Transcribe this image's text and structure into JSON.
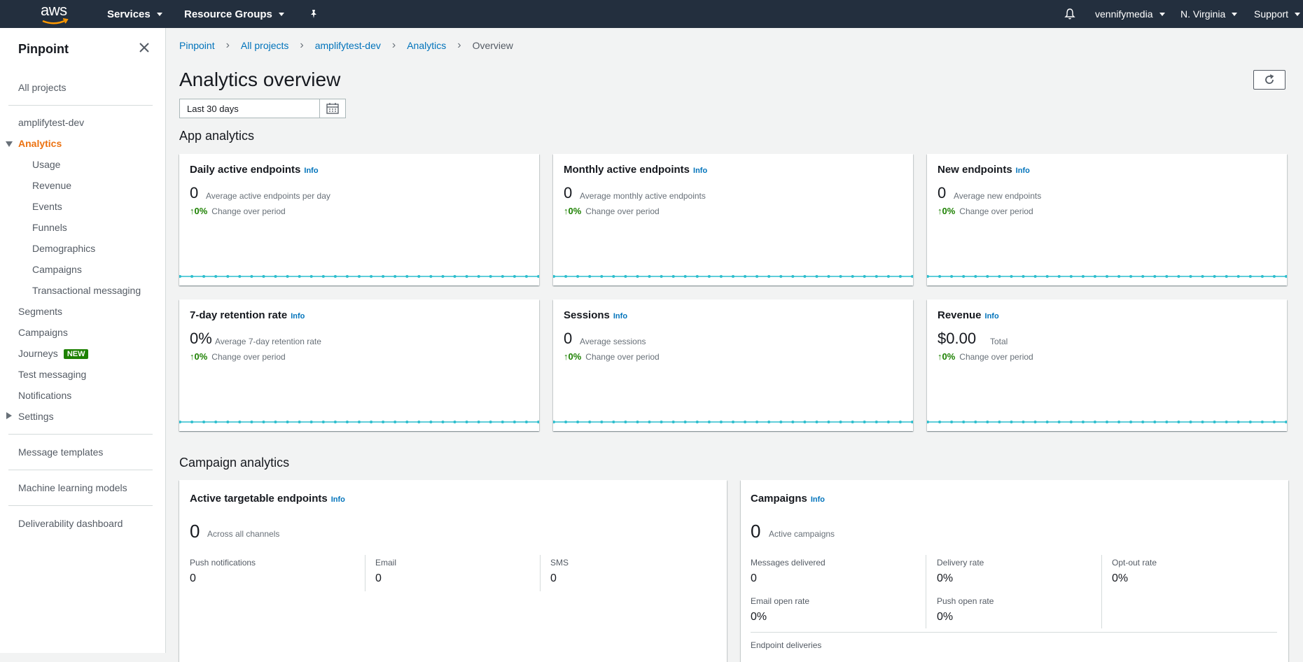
{
  "topbar": {
    "logo_text": "aws",
    "services": "Services",
    "resource_groups": "Resource Groups",
    "account": "vennifymedia",
    "region": "N. Virginia",
    "support": "Support"
  },
  "sidebar": {
    "title": "Pinpoint",
    "all_projects": "All projects",
    "project": "amplifytest-dev",
    "analytics": "Analytics",
    "analytics_items": [
      "Usage",
      "Revenue",
      "Events",
      "Funnels",
      "Demographics",
      "Campaigns",
      "Transactional messaging"
    ],
    "segments": "Segments",
    "campaigns": "Campaigns",
    "journeys": "Journeys",
    "journeys_badge": "NEW",
    "test_messaging": "Test messaging",
    "notifications": "Notifications",
    "settings": "Settings",
    "message_templates": "Message templates",
    "ml_models": "Machine learning models",
    "deliverability": "Deliverability dashboard"
  },
  "breadcrumb": [
    "Pinpoint",
    "All projects",
    "amplifytest-dev",
    "Analytics",
    "Overview"
  ],
  "page": {
    "title": "Analytics overview",
    "date_range": "Last 30 days",
    "app_analytics": "App analytics",
    "campaign_analytics": "Campaign analytics"
  },
  "info_label": "Info",
  "change_label": "Change over period",
  "change_value": "0%",
  "app_cards": [
    {
      "title": "Daily active endpoints",
      "value": "0",
      "desc": "Average active endpoints per day"
    },
    {
      "title": "Monthly active endpoints",
      "value": "0",
      "desc": "Average monthly active endpoints"
    },
    {
      "title": "New endpoints",
      "value": "0",
      "desc": "Average new endpoints"
    },
    {
      "title": "7-day retention rate",
      "value": "0%",
      "desc": "Average 7-day retention rate"
    },
    {
      "title": "Sessions",
      "value": "0",
      "desc": "Average sessions"
    },
    {
      "title": "Revenue",
      "value": "$0.00",
      "desc": "Total"
    }
  ],
  "targetable": {
    "title": "Active targetable endpoints",
    "value": "0",
    "desc": "Across all channels",
    "channels": [
      {
        "label": "Push notifications",
        "value": "0"
      },
      {
        "label": "Email",
        "value": "0"
      },
      {
        "label": "SMS",
        "value": "0"
      }
    ]
  },
  "campaigns_card": {
    "title": "Campaigns",
    "value": "0",
    "desc": "Active campaigns",
    "metrics": [
      {
        "label": "Messages delivered",
        "value": "0"
      },
      {
        "label": "Delivery rate",
        "value": "0%"
      },
      {
        "label": "Opt-out rate",
        "value": "0%"
      },
      {
        "label": "Email open rate",
        "value": "0%"
      },
      {
        "label": "Push open rate",
        "value": "0%"
      }
    ],
    "endpoint_deliveries": "Endpoint deliveries"
  }
}
